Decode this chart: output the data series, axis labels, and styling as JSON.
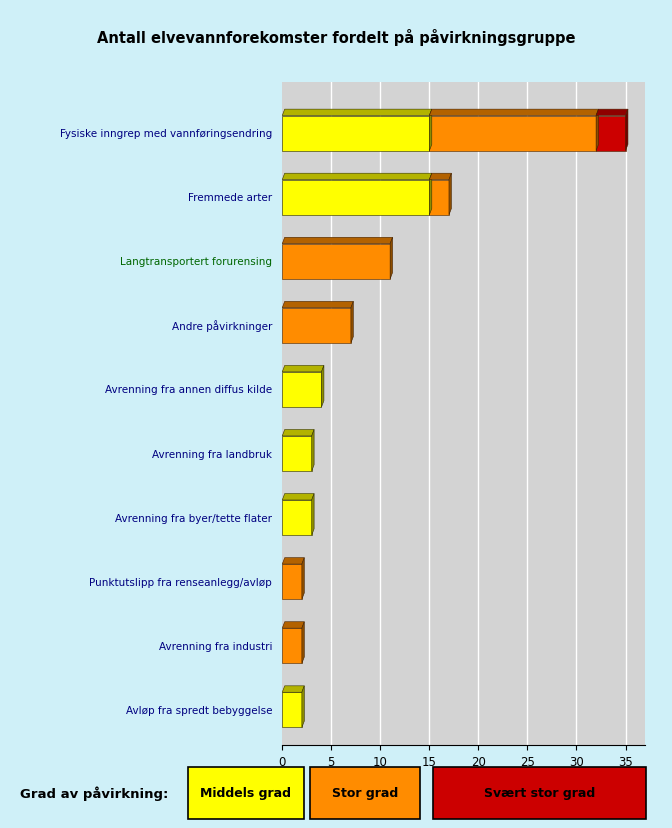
{
  "title": "Antall elvevannforekomster fordelt på påvirkningsgruppe",
  "background_color": "#cff0f8",
  "chart_bg": "#d3d3d3",
  "categories": [
    "Avløp fra spredt bebyggelse",
    "Avrenning fra industri",
    "Punktutslipp fra renseanlegg/avløp",
    "Avrenning fra byer/tette flater",
    "Avrenning fra landbruk",
    "Avrenning fra annen diffus kilde",
    "Andre påvirkninger",
    "Langtransportert forurensing",
    "Fremmede arter",
    "Fysiske inngrep med vannføringsendring"
  ],
  "middels": [
    2,
    0,
    0,
    3,
    3,
    4,
    0,
    0,
    15,
    15
  ],
  "stor": [
    0,
    2,
    2,
    0,
    0,
    0,
    7,
    11,
    2,
    17
  ],
  "svaert": [
    0,
    0,
    0,
    0,
    0,
    0,
    0,
    0,
    0,
    3
  ],
  "color_middels": "#ffff00",
  "color_stor": "#ff8c00",
  "color_svaert": "#cc0000",
  "xlim": [
    0,
    37
  ],
  "xticks": [
    0,
    5,
    10,
    15,
    20,
    25,
    30,
    35
  ],
  "label_color": "#000080",
  "legend_items": [
    {
      "label": "Middels grad",
      "color": "#ffff00"
    },
    {
      "label": "Stor grad",
      "color": "#ff8c00"
    },
    {
      "label": "Svært stor grad",
      "color": "#cc0000"
    }
  ],
  "legend_label": "Grad av påvirkning:"
}
